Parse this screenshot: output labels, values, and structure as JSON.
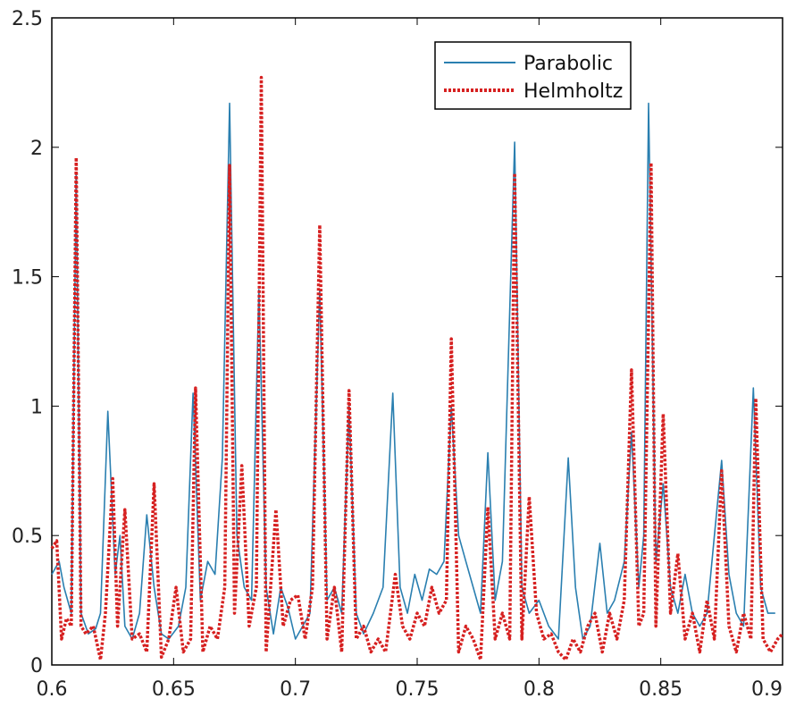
{
  "chart_data": {
    "type": "line",
    "title": "",
    "xlabel": "",
    "ylabel": "",
    "xlim": [
      0.6,
      0.9
    ],
    "ylim": [
      0,
      2.5
    ],
    "x_ticks": [
      "0.6",
      "0.65",
      "0.7",
      "0.75",
      "0.8",
      "0.85",
      "0.9"
    ],
    "y_ticks": [
      "0",
      "0.5",
      "1",
      "1.5",
      "2",
      "2.5"
    ],
    "grid": false,
    "legend_position": "top-right",
    "legend": [
      "Parabolic",
      "Helmholtz"
    ],
    "colors": {
      "Parabolic": "#2a7fb0",
      "Helmholtz": "#d62020"
    },
    "series": [
      {
        "name": "Parabolic",
        "style": "solid",
        "x": [
          0.6,
          0.603,
          0.605,
          0.608,
          0.61,
          0.612,
          0.615,
          0.618,
          0.62,
          0.623,
          0.626,
          0.628,
          0.63,
          0.633,
          0.636,
          0.639,
          0.642,
          0.645,
          0.648,
          0.652,
          0.655,
          0.658,
          0.661,
          0.664,
          0.667,
          0.67,
          0.673,
          0.676,
          0.679,
          0.682,
          0.685,
          0.688,
          0.691,
          0.694,
          0.697,
          0.7,
          0.703,
          0.706,
          0.71,
          0.713,
          0.716,
          0.719,
          0.722,
          0.725,
          0.728,
          0.732,
          0.736,
          0.74,
          0.743,
          0.746,
          0.749,
          0.752,
          0.755,
          0.758,
          0.761,
          0.764,
          0.767,
          0.77,
          0.773,
          0.776,
          0.779,
          0.782,
          0.785,
          0.79,
          0.793,
          0.796,
          0.8,
          0.804,
          0.808,
          0.812,
          0.815,
          0.818,
          0.821,
          0.825,
          0.828,
          0.831,
          0.835,
          0.838,
          0.841,
          0.843,
          0.845,
          0.848,
          0.851,
          0.854,
          0.857,
          0.86,
          0.863,
          0.866,
          0.869,
          0.872,
          0.875,
          0.878,
          0.881,
          0.884,
          0.888,
          0.891,
          0.894,
          0.897
        ],
        "y": [
          0.35,
          0.4,
          0.3,
          0.2,
          1.9,
          0.2,
          0.12,
          0.14,
          0.2,
          0.98,
          0.35,
          0.5,
          0.15,
          0.1,
          0.2,
          0.58,
          0.3,
          0.12,
          0.1,
          0.15,
          0.3,
          1.05,
          0.25,
          0.4,
          0.35,
          0.8,
          2.17,
          0.5,
          0.3,
          0.25,
          1.45,
          0.3,
          0.12,
          0.3,
          0.22,
          0.1,
          0.15,
          0.2,
          1.45,
          0.25,
          0.3,
          0.2,
          1.0,
          0.2,
          0.12,
          0.2,
          0.3,
          1.05,
          0.3,
          0.2,
          0.35,
          0.25,
          0.37,
          0.35,
          0.4,
          1.0,
          0.5,
          0.4,
          0.3,
          0.2,
          0.82,
          0.25,
          0.4,
          2.02,
          0.3,
          0.2,
          0.25,
          0.15,
          0.1,
          0.8,
          0.3,
          0.1,
          0.15,
          0.47,
          0.2,
          0.25,
          0.4,
          0.9,
          0.3,
          0.5,
          2.17,
          0.4,
          0.7,
          0.3,
          0.2,
          0.35,
          0.2,
          0.15,
          0.2,
          0.5,
          0.79,
          0.35,
          0.2,
          0.15,
          1.07,
          0.3,
          0.2,
          0.2
        ]
      },
      {
        "name": "Helmholtz",
        "style": "dotted",
        "x": [
          0.6,
          0.602,
          0.604,
          0.606,
          0.608,
          0.61,
          0.612,
          0.614,
          0.617,
          0.62,
          0.622,
          0.625,
          0.627,
          0.63,
          0.633,
          0.636,
          0.639,
          0.642,
          0.645,
          0.648,
          0.651,
          0.654,
          0.657,
          0.659,
          0.662,
          0.665,
          0.668,
          0.671,
          0.673,
          0.675,
          0.678,
          0.681,
          0.684,
          0.686,
          0.688,
          0.692,
          0.695,
          0.698,
          0.701,
          0.704,
          0.707,
          0.71,
          0.713,
          0.716,
          0.719,
          0.722,
          0.725,
          0.728,
          0.731,
          0.734,
          0.737,
          0.741,
          0.744,
          0.747,
          0.75,
          0.753,
          0.756,
          0.759,
          0.762,
          0.764,
          0.767,
          0.77,
          0.773,
          0.776,
          0.779,
          0.782,
          0.785,
          0.788,
          0.79,
          0.793,
          0.796,
          0.799,
          0.802,
          0.805,
          0.808,
          0.811,
          0.814,
          0.817,
          0.82,
          0.823,
          0.826,
          0.829,
          0.832,
          0.835,
          0.838,
          0.841,
          0.843,
          0.846,
          0.848,
          0.851,
          0.854,
          0.857,
          0.86,
          0.863,
          0.866,
          0.869,
          0.872,
          0.875,
          0.878,
          0.881,
          0.884,
          0.887,
          0.889,
          0.892,
          0.895,
          0.898,
          0.9
        ],
        "y": [
          0.45,
          0.48,
          0.1,
          0.18,
          0.15,
          1.96,
          0.15,
          0.12,
          0.15,
          0.02,
          0.2,
          0.72,
          0.15,
          0.6,
          0.1,
          0.12,
          0.05,
          0.7,
          0.03,
          0.1,
          0.3,
          0.05,
          0.1,
          1.07,
          0.05,
          0.15,
          0.1,
          0.3,
          1.93,
          0.2,
          0.77,
          0.15,
          0.3,
          2.27,
          0.05,
          0.6,
          0.15,
          0.25,
          0.27,
          0.1,
          0.3,
          1.7,
          0.1,
          0.3,
          0.05,
          1.06,
          0.1,
          0.15,
          0.05,
          0.1,
          0.05,
          0.35,
          0.15,
          0.1,
          0.2,
          0.15,
          0.3,
          0.2,
          0.25,
          1.26,
          0.05,
          0.15,
          0.1,
          0.02,
          0.61,
          0.1,
          0.2,
          0.1,
          1.9,
          0.1,
          0.65,
          0.2,
          0.1,
          0.12,
          0.05,
          0.02,
          0.1,
          0.05,
          0.15,
          0.2,
          0.05,
          0.2,
          0.1,
          0.25,
          1.14,
          0.15,
          0.2,
          1.94,
          0.15,
          0.97,
          0.2,
          0.43,
          0.1,
          0.2,
          0.05,
          0.25,
          0.1,
          0.75,
          0.15,
          0.05,
          0.2,
          0.1,
          1.03,
          0.1,
          0.05,
          0.1,
          0.12
        ]
      }
    ]
  }
}
